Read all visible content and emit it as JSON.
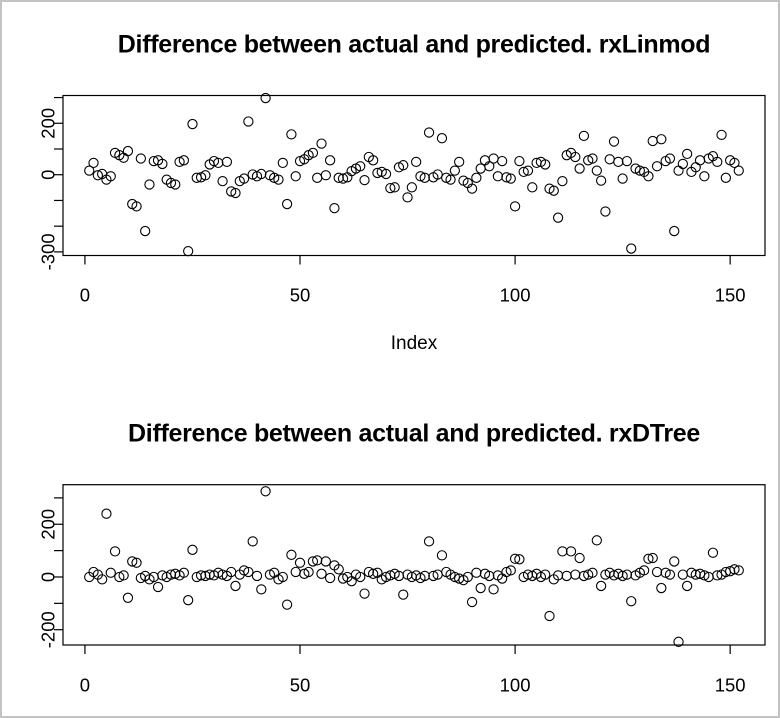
{
  "figure": {
    "background": "#ffffff",
    "border_color": "#c3c3c3",
    "point_color": "#000000",
    "axis_color": "#000000",
    "text_color": "#000000"
  },
  "chart_data": [
    {
      "type": "scatter",
      "title": "Difference between actual and predicted. rxLinmod",
      "xlabel": "Index",
      "ylabel": "",
      "marker": "open-circle",
      "grid": false,
      "x_start": 1,
      "x_ticks": [
        0,
        50,
        100,
        150
      ],
      "x_tick_labels": [
        "0",
        "50",
        "100",
        "150"
      ],
      "xlim": [
        -5.1,
        158.1
      ],
      "y_ticks": [
        300,
        200,
        100,
        0,
        -100,
        -200,
        -300
      ],
      "y_tick_labels": [
        "",
        "200",
        "",
        "0",
        "",
        "",
        "-300"
      ],
      "ylim": [
        -314,
        308
      ],
      "values": [
        16,
        46,
        -2,
        3,
        -19,
        -6,
        85,
        76,
        66,
        92,
        -114,
        -123,
        63,
        -219,
        -38,
        53,
        56,
        42,
        -19,
        -32,
        -38,
        50,
        56,
        -297,
        197,
        -12,
        -10,
        -2,
        40,
        53,
        46,
        -25,
        50,
        -65,
        -71,
        -25,
        -15,
        207,
        1,
        -6,
        3,
        298,
        -2,
        -12,
        -19,
        46,
        -114,
        157,
        -6,
        53,
        60,
        76,
        85,
        -12,
        121,
        -2,
        56,
        -130,
        -12,
        -15,
        -10,
        14,
        24,
        33,
        -21,
        69,
        56,
        7,
        11,
        3,
        -52,
        -49,
        29,
        37,
        -88,
        -49,
        50,
        -6,
        -12,
        164,
        -10,
        1,
        142,
        -12,
        -19,
        16,
        50,
        -23,
        -32,
        -54,
        -12,
        24,
        56,
        33,
        63,
        -6,
        53,
        -10,
        -15,
        -123,
        53,
        11,
        16,
        -49,
        46,
        50,
        40,
        -54,
        -62,
        -167,
        -25,
        76,
        85,
        69,
        24,
        151,
        56,
        63,
        16,
        -23,
        -143,
        60,
        129,
        50,
        -15,
        53,
        -287,
        24,
        16,
        11,
        -6,
        131,
        33,
        138,
        53,
        63,
        -219,
        16,
        42,
        81,
        11,
        29,
        56,
        -6,
        63,
        72,
        50,
        155,
        -12,
        56,
        46,
        16
      ]
    },
    {
      "type": "scatter",
      "title": "Difference between actual and predicted. rxDTree",
      "xlabel": "",
      "ylabel": "",
      "marker": "open-circle",
      "grid": false,
      "x_start": 1,
      "x_ticks": [
        0,
        50,
        100,
        150
      ],
      "x_tick_labels": [
        "0",
        "50",
        "100",
        "150"
      ],
      "xlim": [
        -5.1,
        158.1
      ],
      "y_ticks": [
        300,
        200,
        100,
        0,
        -100,
        -200
      ],
      "y_tick_labels": [
        "",
        "200",
        "",
        "0",
        "",
        "-200"
      ],
      "ylim": [
        -258,
        350
      ],
      "values": [
        0,
        19,
        9,
        -9,
        240,
        16,
        97,
        0,
        6,
        -79,
        59,
        54,
        -4,
        4,
        -9,
        0,
        -38,
        6,
        0,
        9,
        12,
        6,
        16,
        -88,
        103,
        0,
        6,
        4,
        9,
        6,
        16,
        9,
        4,
        19,
        -34,
        9,
        25,
        19,
        135,
        4,
        -47,
        325,
        9,
        16,
        -9,
        0,
        -105,
        84,
        19,
        54,
        12,
        19,
        59,
        63,
        12,
        59,
        -4,
        44,
        29,
        -6,
        0,
        -16,
        9,
        0,
        -63,
        19,
        12,
        16,
        -9,
        0,
        6,
        12,
        4,
        -67,
        9,
        0,
        6,
        -4,
        4,
        135,
        4,
        9,
        82,
        19,
        9,
        0,
        -6,
        -12,
        0,
        -95,
        16,
        -42,
        12,
        4,
        -47,
        6,
        -6,
        19,
        25,
        69,
        67,
        0,
        9,
        4,
        12,
        0,
        9,
        -148,
        -9,
        6,
        97,
        4,
        97,
        9,
        72,
        4,
        9,
        16,
        139,
        -34,
        9,
        16,
        6,
        12,
        4,
        9,
        -92,
        6,
        16,
        25,
        69,
        72,
        19,
        -42,
        16,
        9,
        59,
        -246,
        9,
        -34,
        16,
        9,
        12,
        6,
        0,
        92,
        6,
        9,
        19,
        22,
        29,
        25
      ]
    }
  ]
}
